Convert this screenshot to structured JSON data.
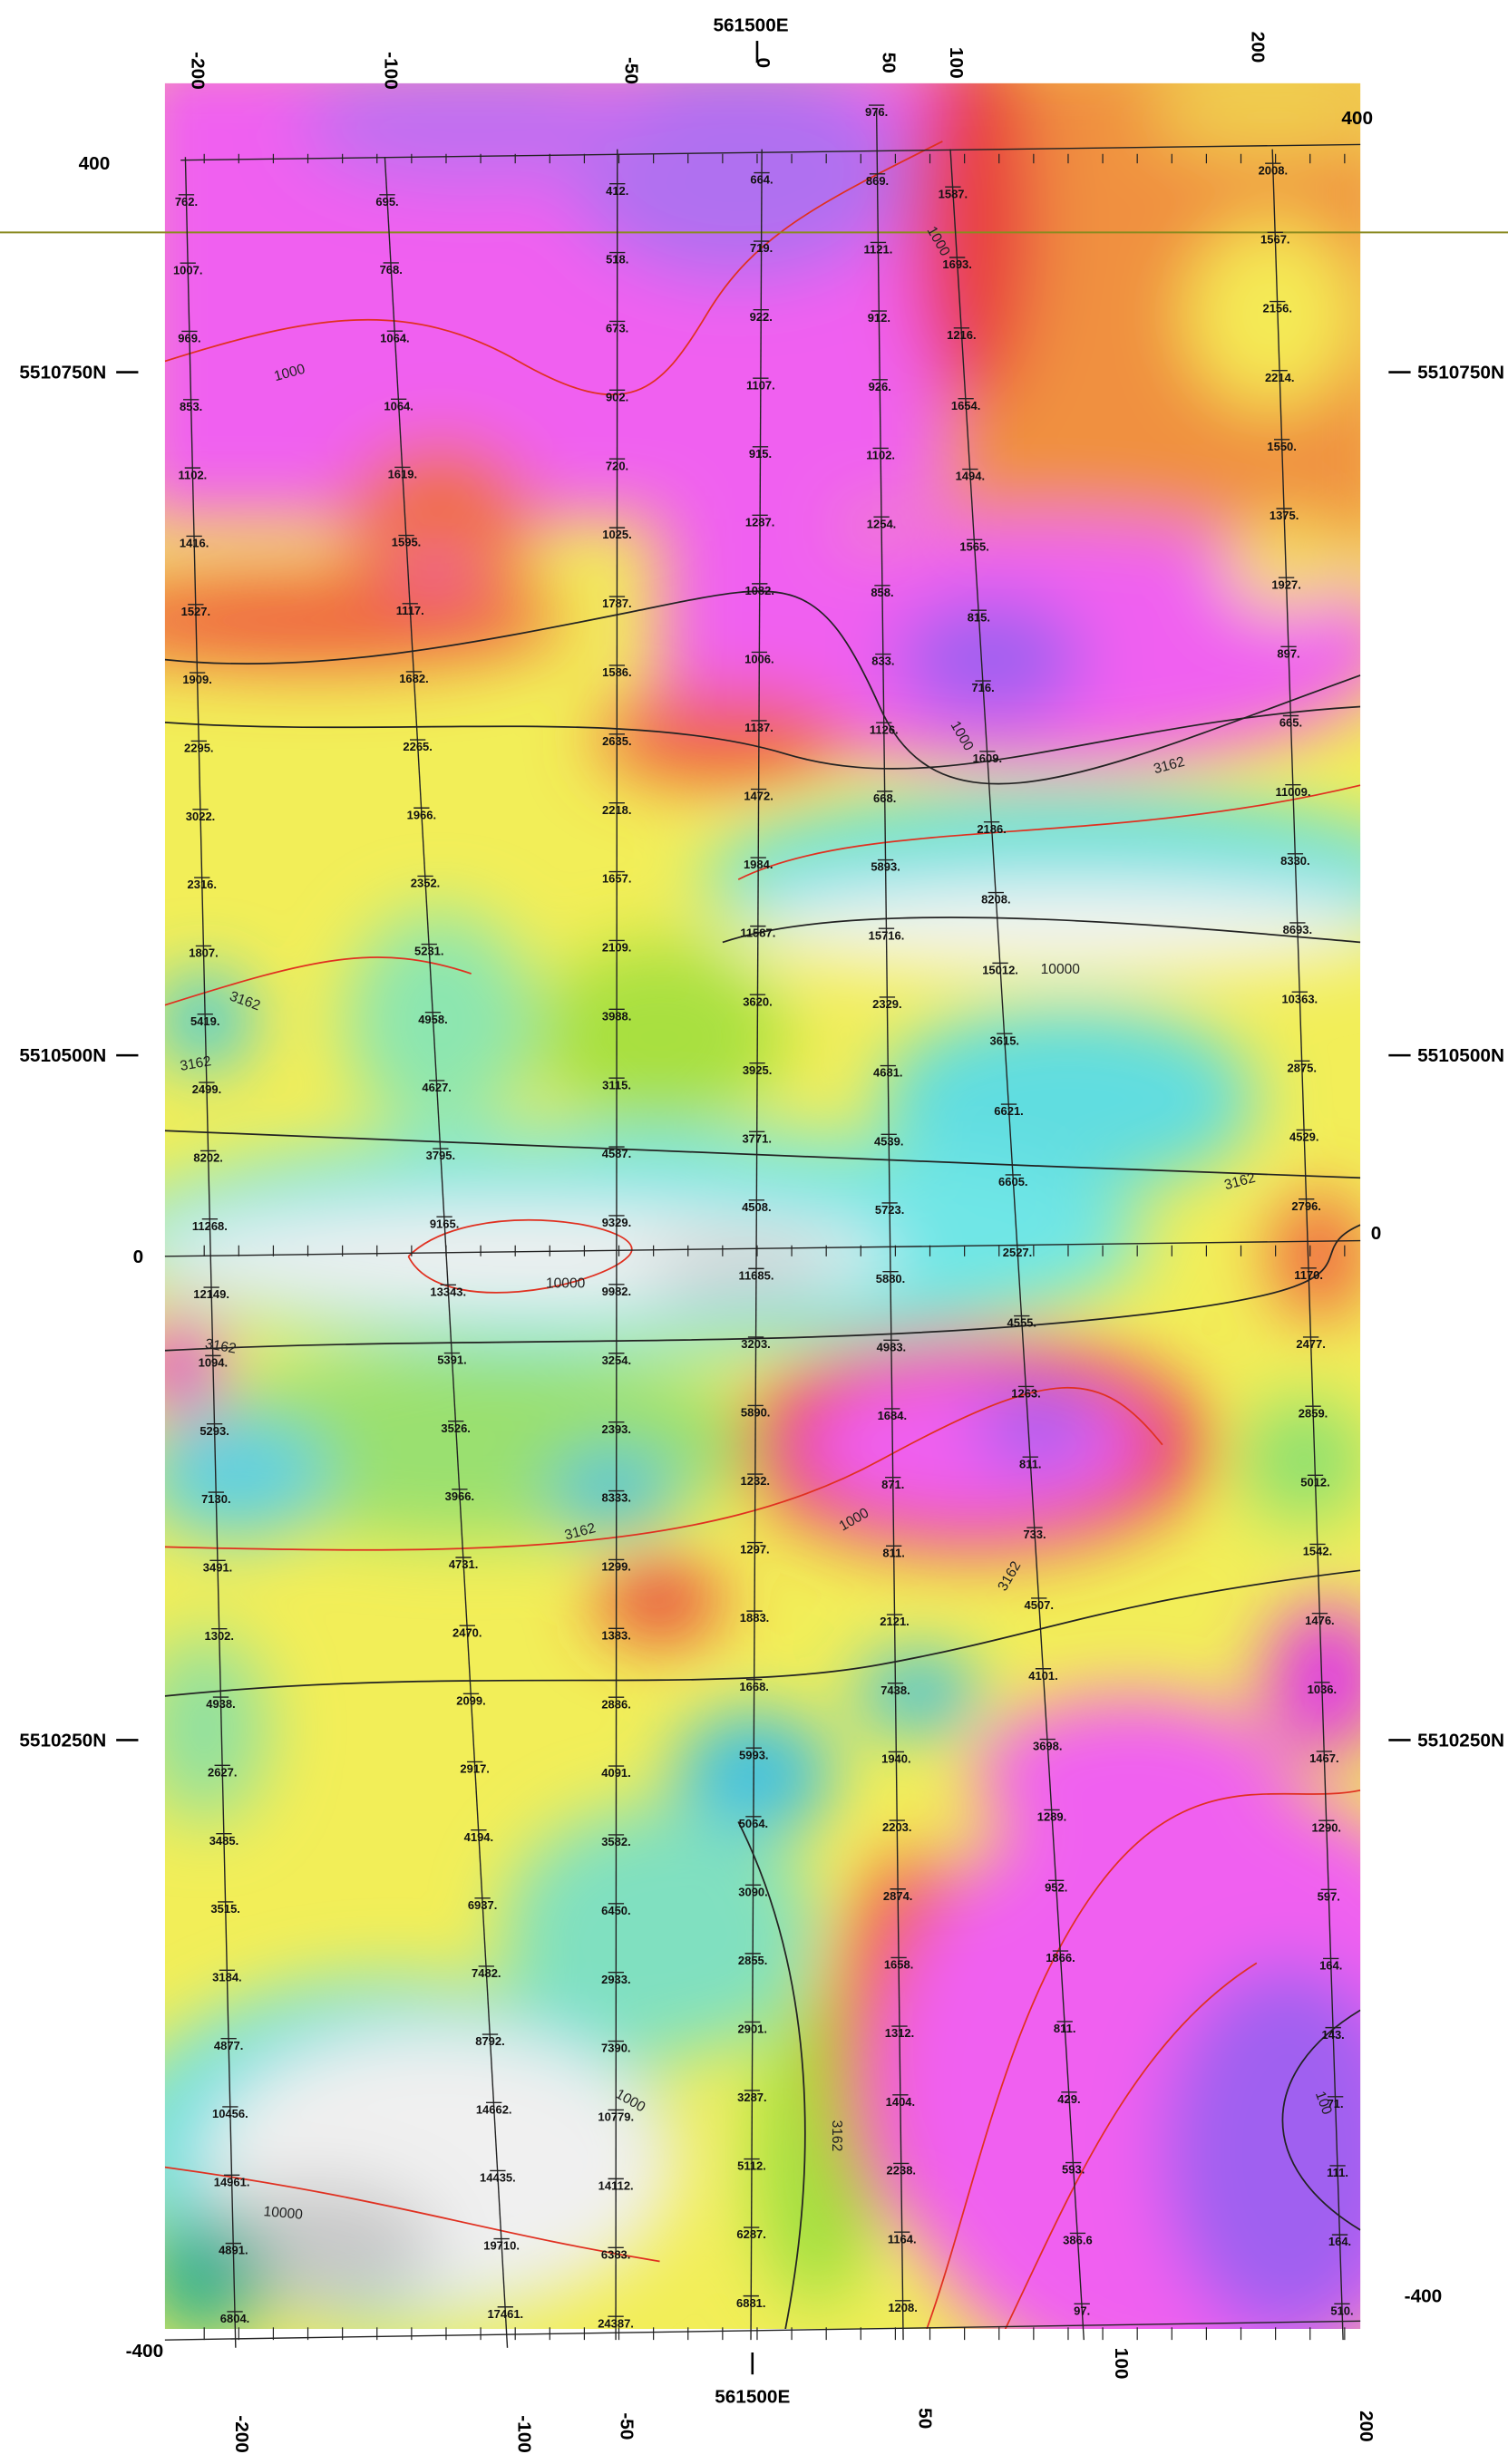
{
  "map": {
    "top_axis": {
      "easting": "561500E",
      "ticks": [
        "-200",
        "-100",
        "-50",
        "0",
        "50",
        "100",
        "200"
      ]
    },
    "bottom_axis": {
      "easting": "561500E",
      "ticks": [
        "-200",
        "-100",
        "-50",
        "50",
        "100",
        "200"
      ]
    },
    "left_labels": [
      "400",
      "5510750N",
      "5510500N",
      "0",
      "5510250N",
      "-400"
    ],
    "right_labels": [
      "400",
      "5510750N",
      "5510500N",
      "0",
      "5510250N",
      "-400"
    ],
    "contour_labels": [
      "1000",
      "1000",
      "3162",
      "10000",
      "3162",
      "3162",
      "3162",
      "10000",
      "3162",
      "1000",
      "3162",
      "3162",
      "10000",
      "3162",
      "100",
      "1000",
      "1000"
    ],
    "lines": [
      {
        "values": [
          "762.",
          "1007.",
          "969.",
          "853.",
          "1102.",
          "1416.",
          "1527.",
          "1909.",
          "2295.",
          "3022.",
          "2316.",
          "1807.",
          "5419.",
          "2499.",
          "8202.",
          "11268.",
          "12149.",
          "1094.",
          "5293.",
          "7130.",
          "3491.",
          "1302.",
          "4938.",
          "2627.",
          "3485.",
          "3515.",
          "3184.",
          "4877.",
          "10456.",
          "14961.",
          "4891.",
          "6804."
        ]
      },
      {
        "values": [
          "695.",
          "768.",
          "1064.",
          "1064.",
          "1619.",
          "1595.",
          "1117.",
          "1682.",
          "2265.",
          "1966.",
          "2352.",
          "5231.",
          "4958.",
          "4627.",
          "3795.",
          "9165.",
          "13343.",
          "5391.",
          "3526.",
          "3966.",
          "4731.",
          "2470.",
          "2099.",
          "2917.",
          "4194.",
          "6937.",
          "7482.",
          "8792.",
          "14662.",
          "14435.",
          "19710.",
          "17461."
        ]
      },
      {
        "values": [
          "412.",
          "518.",
          "673.",
          "902.",
          "720.",
          "1025.",
          "1787.",
          "1586.",
          "2635.",
          "2218.",
          "1657.",
          "2109.",
          "3988.",
          "3115.",
          "4587.",
          "9329.",
          "9982.",
          "3254.",
          "2393.",
          "8333.",
          "1299.",
          "1383.",
          "2886.",
          "4091.",
          "3582.",
          "6450.",
          "2933.",
          "7390.",
          "10779.",
          "14112.",
          "6383.",
          "24387."
        ]
      },
      {
        "values": [
          "664.",
          "719.",
          "922.",
          "1107.",
          "915.",
          "1287.",
          "1082.",
          "1006.",
          "1137.",
          "1472.",
          "1984.",
          "11587.",
          "3620.",
          "3925.",
          "3771.",
          "4508.",
          "11685.",
          "3203.",
          "5890.",
          "1232.",
          "1297.",
          "1883.",
          "1668.",
          "5993.",
          "5064.",
          "3090.",
          "2855.",
          "2901.",
          "3287.",
          "5112.",
          "6287.",
          "6881."
        ]
      },
      {
        "values": [
          "976.",
          "869.",
          "1121.",
          "912.",
          "926.",
          "1102.",
          "1254.",
          "858.",
          "833.",
          "1126.",
          "668.",
          "5893.",
          "15716.",
          "2329.",
          "4681.",
          "4539.",
          "5723.",
          "5880.",
          "4983.",
          "1684.",
          "871.",
          "811.",
          "2121.",
          "7438.",
          "1940.",
          "2203.",
          "2874.",
          "1658.",
          "1312.",
          "1404.",
          "2238.",
          "1164.",
          "1208."
        ]
      },
      {
        "values": [
          "1587.",
          "1693.",
          "1216.",
          "1654.",
          "1494.",
          "1565.",
          "815.",
          "716.",
          "1609.",
          "2186.",
          "8208.",
          "15012.",
          "3615.",
          "6621.",
          "6605.",
          "2527.",
          "4555.",
          "1263.",
          "811.",
          "733.",
          "4507.",
          "4101.",
          "3698.",
          "1289.",
          "952.",
          "1866.",
          "811.",
          "429.",
          "593.",
          "386.6",
          "97."
        ]
      },
      {
        "values": [
          "2008.",
          "1567.",
          "2156.",
          "2214.",
          "1550.",
          "1375.",
          "1927.",
          "897.",
          "665.",
          "11009.",
          "8330.",
          "8693.",
          "10363.",
          "2875.",
          "4529.",
          "2796.",
          "1170.",
          "2477.",
          "2859.",
          "5012.",
          "1542.",
          "1476.",
          "1036.",
          "1467.",
          "1290.",
          "597.",
          "164.",
          "143.",
          "71.",
          "111.",
          "164.",
          "510."
        ]
      }
    ]
  }
}
